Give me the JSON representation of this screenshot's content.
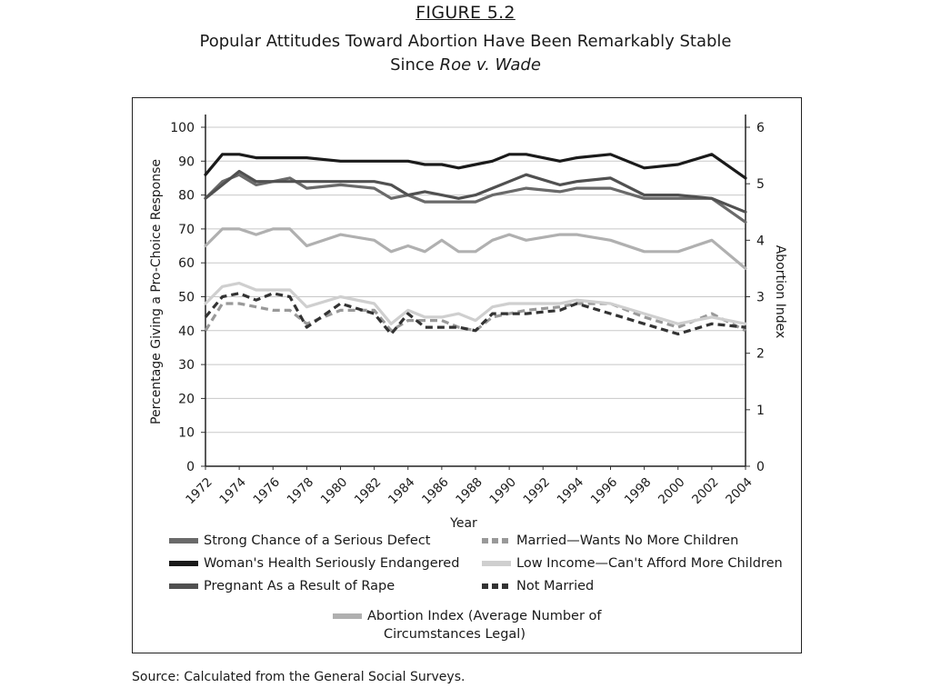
{
  "figure": {
    "label": "FIGURE 5.2",
    "title_line1": "Popular Attitudes Toward Abortion Have Been Remarkably Stable",
    "title_line2_prefix": "Since ",
    "title_line2_italic": "Roe v. Wade"
  },
  "source": "Source: Calculated from the General Social Surveys.",
  "chart_data": {
    "type": "line",
    "title": "Popular Attitudes Toward Abortion Have Been Remarkably Stable Since Roe v. Wade",
    "xlabel": "Year",
    "ylabel": "Percentage Giving a Pro-Choice Response",
    "y2label": "Abortion Index",
    "ylim": [
      0,
      100
    ],
    "y2lim": [
      0,
      6
    ],
    "yticks": [
      "0",
      "10",
      "20",
      "30",
      "40",
      "50",
      "60",
      "70",
      "80",
      "90",
      "100"
    ],
    "y2ticks": [
      "0",
      "1",
      "2",
      "3",
      "4",
      "5",
      "6"
    ],
    "xticks": [
      "1972",
      "1974",
      "1976",
      "1978",
      "1980",
      "1982",
      "1984",
      "1986",
      "1988",
      "1990",
      "1992",
      "1994",
      "1996",
      "1998",
      "2000",
      "2002",
      "2004"
    ],
    "grid": true,
    "x": [
      1972,
      1973,
      1974,
      1975,
      1976,
      1977,
      1978,
      1980,
      1982,
      1983,
      1984,
      1985,
      1986,
      1987,
      1988,
      1989,
      1990,
      1991,
      1993,
      1994,
      1996,
      1998,
      2000,
      2002,
      2004
    ],
    "series": [
      {
        "name": "Strong Chance of a Serious Defect",
        "axis": "left",
        "color": "#6a6a6a",
        "dash": false,
        "values": [
          79,
          84,
          86,
          83,
          84,
          85,
          82,
          83,
          82,
          79,
          80,
          78,
          78,
          78,
          78,
          80,
          81,
          82,
          81,
          82,
          82,
          79,
          79,
          79,
          72
        ]
      },
      {
        "name": "Married—Wants No More Children",
        "axis": "left",
        "color": "#999999",
        "dash": true,
        "values": [
          40,
          48,
          48,
          47,
          46,
          46,
          42,
          46,
          46,
          40,
          43,
          43,
          43,
          41,
          40,
          44,
          45,
          46,
          47,
          48,
          48,
          44,
          41,
          45,
          40
        ]
      },
      {
        "name": "Woman's Health Seriously Endangered",
        "axis": "left",
        "color": "#1a1a1a",
        "dash": false,
        "values": [
          86,
          92,
          92,
          91,
          91,
          91,
          91,
          90,
          90,
          90,
          90,
          89,
          89,
          88,
          89,
          90,
          92,
          92,
          90,
          91,
          92,
          88,
          89,
          92,
          85
        ]
      },
      {
        "name": "Low Income—Can't Afford More Children",
        "axis": "left",
        "color": "#cfcfcf",
        "dash": false,
        "values": [
          48,
          53,
          54,
          52,
          52,
          52,
          47,
          50,
          48,
          42,
          46,
          44,
          44,
          45,
          43,
          47,
          48,
          48,
          48,
          49,
          48,
          45,
          42,
          44,
          42
        ]
      },
      {
        "name": "Pregnant As a Result of Rape",
        "axis": "left",
        "color": "#505050",
        "dash": false,
        "values": [
          79,
          83,
          87,
          84,
          84,
          84,
          84,
          84,
          84,
          83,
          80,
          81,
          80,
          79,
          80,
          82,
          84,
          86,
          83,
          84,
          85,
          80,
          80,
          79,
          75
        ]
      },
      {
        "name": "Not Married",
        "axis": "left",
        "color": "#333333",
        "dash": true,
        "values": [
          44,
          50,
          51,
          49,
          51,
          50,
          41,
          48,
          45,
          39,
          45,
          41,
          41,
          41,
          40,
          45,
          45,
          45,
          46,
          48,
          45,
          42,
          39,
          42,
          41
        ]
      },
      {
        "name": "Abortion Index (Average Number of Circumstances Legal)",
        "axis": "right",
        "color": "#b0b0b0",
        "dash": false,
        "values": [
          3.9,
          4.2,
          4.2,
          4.1,
          4.2,
          4.2,
          3.9,
          4.1,
          4.0,
          3.8,
          3.9,
          3.8,
          4.0,
          3.8,
          3.8,
          4.0,
          4.1,
          4.0,
          4.1,
          4.1,
          4.0,
          3.8,
          3.8,
          4.0,
          3.5
        ]
      }
    ],
    "legend": [
      {
        "label": "Strong Chance of a Serious Defect"
      },
      {
        "label": "Married—Wants No More Children"
      },
      {
        "label": "Woman's Health Seriously Endangered"
      },
      {
        "label": "Low Income—Can't Afford More Children"
      },
      {
        "label": "Pregnant As a Result of Rape"
      },
      {
        "label": "Not Married"
      },
      {
        "label_line1": "Abortion Index (Average Number of",
        "label_line2": "Circumstances Legal)"
      }
    ]
  }
}
